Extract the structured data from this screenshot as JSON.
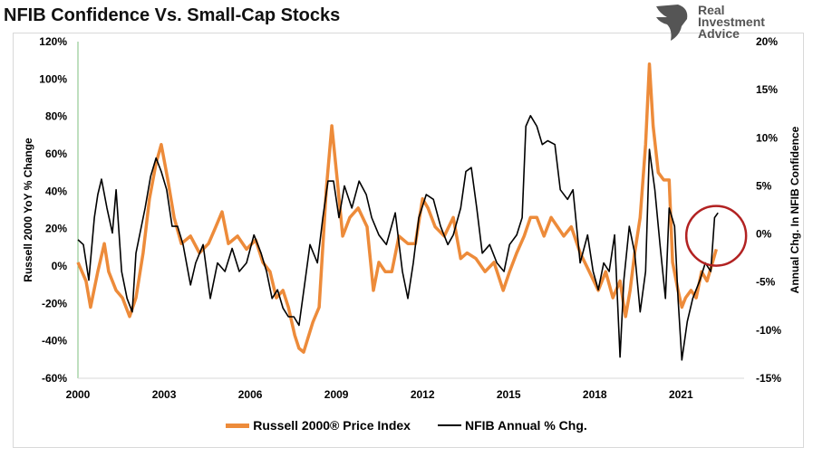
{
  "chart_data": {
    "type": "line",
    "title": "NFIB Confidence Vs. Small-Cap Stocks",
    "ylabel_left": "Russell 2000 YoY % Change",
    "ylabel_right": "Annual Chg. In NFIB Confidence",
    "xlim": [
      2000,
      2023.2
    ],
    "ylim_left": [
      -60,
      120
    ],
    "ylim_right": [
      -15,
      20
    ],
    "x_ticks": [
      "2000",
      "2003",
      "2006",
      "2009",
      "2012",
      "2015",
      "2018",
      "2021"
    ],
    "y_ticks_left": [
      "120%",
      "100%",
      "80%",
      "60%",
      "40%",
      "20%",
      "0%",
      "-20%",
      "-40%",
      "-60%"
    ],
    "y_ticks_right": [
      "20%",
      "15%",
      "10%",
      "5%",
      "0%",
      "-5%",
      "-10%",
      "-15%"
    ],
    "grid": false,
    "legend_position": "bottom",
    "annotation": "red circle highlighting latest NFIB rise",
    "series": [
      {
        "name": "Russell 2000® Price Index",
        "axis": "left",
        "color": "#ed8b3a",
        "points": [
          [
            2000.0,
            2
          ],
          [
            2000.28,
            -8
          ],
          [
            2000.44,
            -22
          ],
          [
            2000.69,
            -3
          ],
          [
            2000.92,
            12
          ],
          [
            2001.07,
            -3
          ],
          [
            2001.33,
            -13
          ],
          [
            2001.55,
            -17
          ],
          [
            2001.8,
            -27
          ],
          [
            2002.02,
            -17
          ],
          [
            2002.27,
            7
          ],
          [
            2002.49,
            36
          ],
          [
            2002.72,
            55
          ],
          [
            2002.9,
            65
          ],
          [
            2003.13,
            46
          ],
          [
            2003.35,
            26
          ],
          [
            2003.6,
            12
          ],
          [
            2003.92,
            16
          ],
          [
            2004.23,
            7
          ],
          [
            2004.55,
            12
          ],
          [
            2004.8,
            21
          ],
          [
            2005.02,
            29
          ],
          [
            2005.24,
            12
          ],
          [
            2005.56,
            16
          ],
          [
            2005.87,
            9
          ],
          [
            2006.19,
            14
          ],
          [
            2006.44,
            2
          ],
          [
            2006.69,
            -3
          ],
          [
            2006.91,
            -17
          ],
          [
            2007.14,
            -13
          ],
          [
            2007.33,
            -22
          ],
          [
            2007.55,
            -37
          ],
          [
            2007.7,
            -44
          ],
          [
            2007.86,
            -46
          ],
          [
            2008.18,
            -30
          ],
          [
            2008.4,
            -22
          ],
          [
            2008.65,
            41
          ],
          [
            2008.84,
            75
          ],
          [
            2009.03,
            46
          ],
          [
            2009.22,
            16
          ],
          [
            2009.47,
            26
          ],
          [
            2009.76,
            31
          ],
          [
            2010.07,
            21
          ],
          [
            2010.29,
            -13
          ],
          [
            2010.48,
            2
          ],
          [
            2010.7,
            -3
          ],
          [
            2010.93,
            -3
          ],
          [
            2011.18,
            16
          ],
          [
            2011.49,
            12
          ],
          [
            2011.75,
            12
          ],
          [
            2012.0,
            36
          ],
          [
            2012.19,
            31
          ],
          [
            2012.44,
            21
          ],
          [
            2012.76,
            16
          ],
          [
            2013.07,
            26
          ],
          [
            2013.33,
            4
          ],
          [
            2013.55,
            7
          ],
          [
            2013.86,
            4
          ],
          [
            2014.18,
            -3
          ],
          [
            2014.49,
            2
          ],
          [
            2014.81,
            -13
          ],
          [
            2015.03,
            -3
          ],
          [
            2015.28,
            7
          ],
          [
            2015.54,
            16
          ],
          [
            2015.76,
            26
          ],
          [
            2015.98,
            26
          ],
          [
            2016.23,
            16
          ],
          [
            2016.48,
            26
          ],
          [
            2016.7,
            21
          ],
          [
            2016.92,
            16
          ],
          [
            2017.18,
            21
          ],
          [
            2017.49,
            7
          ],
          [
            2017.81,
            -3
          ],
          [
            2018.12,
            -13
          ],
          [
            2018.38,
            -3
          ],
          [
            2018.63,
            -17
          ],
          [
            2018.88,
            -8
          ],
          [
            2019.07,
            -27
          ],
          [
            2019.23,
            -13
          ],
          [
            2019.39,
            7
          ],
          [
            2019.58,
            26
          ],
          [
            2019.77,
            65
          ],
          [
            2019.9,
            108
          ],
          [
            2020.03,
            75
          ],
          [
            2020.21,
            50
          ],
          [
            2020.4,
            46
          ],
          [
            2020.59,
            46
          ],
          [
            2020.71,
            2
          ],
          [
            2020.9,
            -13
          ],
          [
            2021.03,
            -22
          ],
          [
            2021.16,
            -17
          ],
          [
            2021.35,
            -13
          ],
          [
            2021.53,
            -17
          ],
          [
            2021.72,
            -3
          ],
          [
            2021.91,
            -8
          ],
          [
            2022.1,
            2
          ],
          [
            2022.23,
            9
          ]
        ]
      },
      {
        "name": "NFIB Annual % Chg.",
        "axis": "right",
        "color": "#000000",
        "points": [
          [
            2000.0,
            -0.6
          ],
          [
            2000.19,
            -1.1
          ],
          [
            2000.38,
            -4.8
          ],
          [
            2000.57,
            1.7
          ],
          [
            2000.69,
            4.1
          ],
          [
            2000.82,
            5.7
          ],
          [
            2001.01,
            2.7
          ],
          [
            2001.2,
            0.1
          ],
          [
            2001.33,
            4.6
          ],
          [
            2001.52,
            -3.9
          ],
          [
            2001.71,
            -6.7
          ],
          [
            2001.89,
            -8.1
          ],
          [
            2002.02,
            -2.0
          ],
          [
            2002.21,
            0.8
          ],
          [
            2002.34,
            2.7
          ],
          [
            2002.53,
            6.0
          ],
          [
            2002.72,
            7.9
          ],
          [
            2002.9,
            6.5
          ],
          [
            2003.09,
            4.6
          ],
          [
            2003.28,
            0.8
          ],
          [
            2003.47,
            0.8
          ],
          [
            2003.66,
            -1.1
          ],
          [
            2003.92,
            -5.3
          ],
          [
            2004.1,
            -3.0
          ],
          [
            2004.36,
            -1.1
          ],
          [
            2004.61,
            -6.7
          ],
          [
            2004.86,
            -3.0
          ],
          [
            2005.12,
            -3.9
          ],
          [
            2005.37,
            -1.5
          ],
          [
            2005.62,
            -3.9
          ],
          [
            2005.87,
            -3.0
          ],
          [
            2006.13,
            -0.1
          ],
          [
            2006.38,
            -2.0
          ],
          [
            2006.57,
            -3.9
          ],
          [
            2006.76,
            -6.7
          ],
          [
            2006.95,
            -5.8
          ],
          [
            2007.14,
            -7.7
          ],
          [
            2007.33,
            -8.6
          ],
          [
            2007.52,
            -8.6
          ],
          [
            2007.7,
            -9.5
          ],
          [
            2007.89,
            -5.3
          ],
          [
            2008.08,
            -1.1
          ],
          [
            2008.34,
            -3.0
          ],
          [
            2008.53,
            1.7
          ],
          [
            2008.71,
            5.5
          ],
          [
            2008.9,
            5.5
          ],
          [
            2009.09,
            1.7
          ],
          [
            2009.28,
            5.0
          ],
          [
            2009.54,
            2.7
          ],
          [
            2009.79,
            5.5
          ],
          [
            2010.04,
            4.1
          ],
          [
            2010.23,
            1.7
          ],
          [
            2010.48,
            -0.1
          ],
          [
            2010.74,
            -1.1
          ],
          [
            2011.05,
            2.2
          ],
          [
            2011.3,
            -3.9
          ],
          [
            2011.49,
            -6.7
          ],
          [
            2011.68,
            -3.0
          ],
          [
            2011.87,
            1.7
          ],
          [
            2012.13,
            4.1
          ],
          [
            2012.38,
            3.6
          ],
          [
            2012.63,
            0.8
          ],
          [
            2012.88,
            -1.1
          ],
          [
            2013.07,
            -0.1
          ],
          [
            2013.33,
            2.7
          ],
          [
            2013.51,
            6.5
          ],
          [
            2013.7,
            6.9
          ],
          [
            2013.89,
            2.7
          ],
          [
            2014.08,
            -2.0
          ],
          [
            2014.34,
            -1.1
          ],
          [
            2014.59,
            -3.0
          ],
          [
            2014.84,
            -3.9
          ],
          [
            2015.03,
            -1.1
          ],
          [
            2015.28,
            -0.1
          ],
          [
            2015.47,
            1.7
          ],
          [
            2015.6,
            11.2
          ],
          [
            2015.76,
            12.3
          ],
          [
            2015.98,
            11.2
          ],
          [
            2016.17,
            9.3
          ],
          [
            2016.36,
            9.7
          ],
          [
            2016.61,
            9.3
          ],
          [
            2016.8,
            4.6
          ],
          [
            2017.05,
            3.6
          ],
          [
            2017.24,
            4.6
          ],
          [
            2017.49,
            -3.0
          ],
          [
            2017.75,
            -0.1
          ],
          [
            2017.94,
            -3.9
          ],
          [
            2018.12,
            -5.8
          ],
          [
            2018.31,
            -3.0
          ],
          [
            2018.5,
            -3.9
          ],
          [
            2018.69,
            -0.1
          ],
          [
            2018.88,
            -12.8
          ],
          [
            2019.01,
            -4.8
          ],
          [
            2019.2,
            0.8
          ],
          [
            2019.39,
            -2.0
          ],
          [
            2019.58,
            -8.1
          ],
          [
            2019.77,
            -3.9
          ],
          [
            2019.9,
            8.8
          ],
          [
            2020.09,
            4.6
          ],
          [
            2020.27,
            -1.1
          ],
          [
            2020.46,
            -6.7
          ],
          [
            2020.59,
            2.7
          ],
          [
            2020.78,
            0.8
          ],
          [
            2020.9,
            -6.7
          ],
          [
            2021.03,
            -13.1
          ],
          [
            2021.22,
            -9.1
          ],
          [
            2021.41,
            -6.7
          ],
          [
            2021.66,
            -4.8
          ],
          [
            2021.85,
            -3.0
          ],
          [
            2022.04,
            -3.9
          ],
          [
            2022.17,
            1.7
          ],
          [
            2022.29,
            2.2
          ]
        ]
      }
    ]
  },
  "logo": {
    "text_lines": [
      "Real",
      "Investment",
      "Advice"
    ]
  },
  "colors": {
    "annotation_circle": "#b22222",
    "left_axis_line": "#7fbf7f"
  }
}
